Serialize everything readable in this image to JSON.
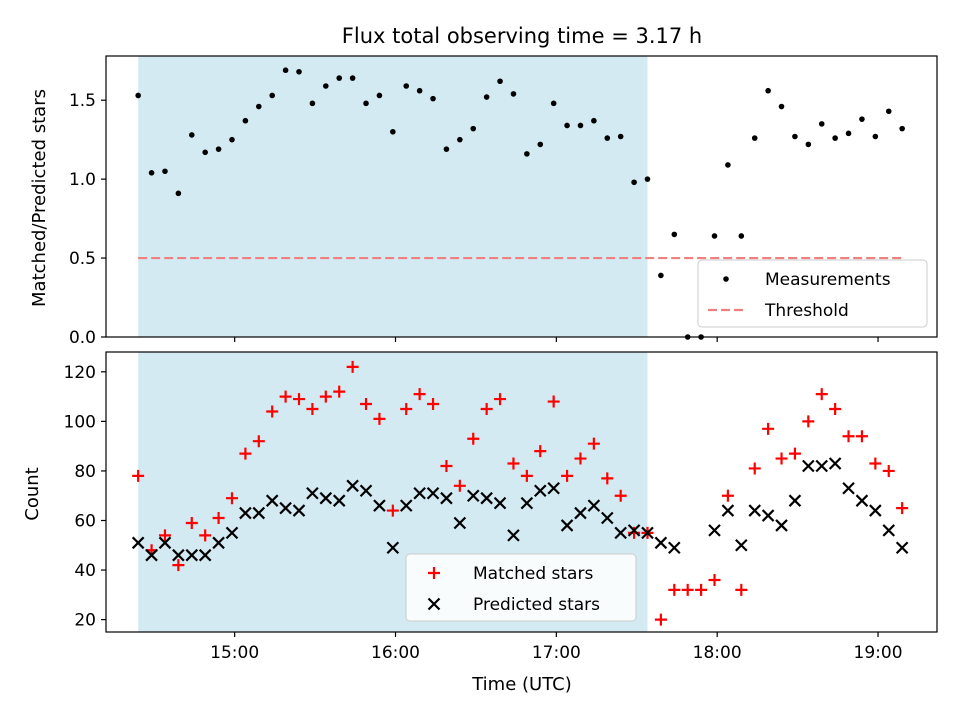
{
  "title": "Flux total observing time = 3.17 h",
  "chart_data": [
    {
      "type": "scatter",
      "ylabel": "Matched/Predicted stars",
      "ylim": [
        0,
        1.78
      ],
      "xlim": [
        "14:12",
        "19:22"
      ],
      "yticks": [
        0.0,
        0.5,
        1.0,
        1.5
      ],
      "ytick_labels": [
        "0.0",
        "0.5",
        "1.0",
        "1.5"
      ],
      "shaded_span": [
        "14:24",
        "17:34"
      ],
      "shade_color": "#add8e6",
      "legend_position": "lower-right",
      "threshold": {
        "name": "Threshold",
        "value": 0.5,
        "x_start": "14:24",
        "x_end": "19:10",
        "color": "#f08080",
        "style": "dashed"
      },
      "series": [
        {
          "name": "Measurements",
          "marker": "dot",
          "color": "#000000",
          "points": [
            [
              "14:24",
              1.53
            ],
            [
              "14:29",
              1.04
            ],
            [
              "14:34",
              1.05
            ],
            [
              "14:39",
              0.91
            ],
            [
              "14:44",
              1.28
            ],
            [
              "14:49",
              1.17
            ],
            [
              "14:54",
              1.19
            ],
            [
              "14:59",
              1.25
            ],
            [
              "15:04",
              1.37
            ],
            [
              "15:09",
              1.46
            ],
            [
              "15:14",
              1.53
            ],
            [
              "15:19",
              1.69
            ],
            [
              "15:24",
              1.68
            ],
            [
              "15:29",
              1.48
            ],
            [
              "15:34",
              1.59
            ],
            [
              "15:39",
              1.64
            ],
            [
              "15:44",
              1.64
            ],
            [
              "15:49",
              1.48
            ],
            [
              "15:54",
              1.53
            ],
            [
              "15:59",
              1.3
            ],
            [
              "16:04",
              1.59
            ],
            [
              "16:09",
              1.56
            ],
            [
              "16:14",
              1.51
            ],
            [
              "16:19",
              1.19
            ],
            [
              "16:24",
              1.25
            ],
            [
              "16:29",
              1.32
            ],
            [
              "16:34",
              1.52
            ],
            [
              "16:39",
              1.62
            ],
            [
              "16:44",
              1.54
            ],
            [
              "16:49",
              1.16
            ],
            [
              "16:54",
              1.22
            ],
            [
              "16:59",
              1.48
            ],
            [
              "17:04",
              1.34
            ],
            [
              "17:09",
              1.34
            ],
            [
              "17:14",
              1.37
            ],
            [
              "17:19",
              1.26
            ],
            [
              "17:24",
              1.27
            ],
            [
              "17:29",
              0.98
            ],
            [
              "17:34",
              1.0
            ],
            [
              "17:39",
              0.39
            ],
            [
              "17:44",
              0.65
            ],
            [
              "17:49",
              0.0
            ],
            [
              "17:54",
              0.0
            ],
            [
              "17:59",
              0.64
            ],
            [
              "18:04",
              1.09
            ],
            [
              "18:09",
              0.64
            ],
            [
              "18:14",
              1.26
            ],
            [
              "18:19",
              1.56
            ],
            [
              "18:24",
              1.46
            ],
            [
              "18:29",
              1.27
            ],
            [
              "18:34",
              1.22
            ],
            [
              "18:39",
              1.35
            ],
            [
              "18:44",
              1.26
            ],
            [
              "18:49",
              1.29
            ],
            [
              "18:54",
              1.38
            ],
            [
              "18:59",
              1.27
            ],
            [
              "19:04",
              1.43
            ],
            [
              "19:09",
              1.32
            ]
          ]
        }
      ],
      "legend": [
        "Measurements",
        "Threshold"
      ]
    },
    {
      "type": "scatter",
      "xlabel": "Time (UTC)",
      "ylabel": "Count",
      "ylim": [
        15,
        128
      ],
      "xlim": [
        "14:12",
        "19:22"
      ],
      "xticks": [
        "15:00",
        "16:00",
        "17:00",
        "18:00",
        "19:00"
      ],
      "yticks": [
        20,
        40,
        60,
        80,
        100,
        120
      ],
      "shaded_span": [
        "14:24",
        "17:34"
      ],
      "shade_color": "#add8e6",
      "legend_position": "lower-center",
      "series": [
        {
          "name": "Matched stars",
          "marker": "plus",
          "color": "#ff0000",
          "points": [
            [
              "14:24",
              78
            ],
            [
              "14:29",
              48
            ],
            [
              "14:34",
              54
            ],
            [
              "14:39",
              42
            ],
            [
              "14:44",
              59
            ],
            [
              "14:49",
              54
            ],
            [
              "14:54",
              61
            ],
            [
              "14:59",
              69
            ],
            [
              "15:04",
              87
            ],
            [
              "15:09",
              92
            ],
            [
              "15:14",
              104
            ],
            [
              "15:19",
              110
            ],
            [
              "15:24",
              109
            ],
            [
              "15:29",
              105
            ],
            [
              "15:34",
              110
            ],
            [
              "15:39",
              112
            ],
            [
              "15:44",
              122
            ],
            [
              "15:49",
              107
            ],
            [
              "15:54",
              101
            ],
            [
              "15:59",
              64
            ],
            [
              "16:04",
              105
            ],
            [
              "16:09",
              111
            ],
            [
              "16:14",
              107
            ],
            [
              "16:19",
              82
            ],
            [
              "16:24",
              74
            ],
            [
              "16:29",
              93
            ],
            [
              "16:34",
              105
            ],
            [
              "16:39",
              109
            ],
            [
              "16:44",
              83
            ],
            [
              "16:49",
              78
            ],
            [
              "16:54",
              88
            ],
            [
              "16:59",
              108
            ],
            [
              "17:04",
              78
            ],
            [
              "17:09",
              85
            ],
            [
              "17:14",
              91
            ],
            [
              "17:19",
              77
            ],
            [
              "17:24",
              70
            ],
            [
              "17:29",
              55
            ],
            [
              "17:34",
              55
            ],
            [
              "17:39",
              20
            ],
            [
              "17:44",
              32
            ],
            [
              "17:49",
              32
            ],
            [
              "17:54",
              32
            ],
            [
              "17:59",
              36
            ],
            [
              "18:04",
              70
            ],
            [
              "18:09",
              32
            ],
            [
              "18:14",
              81
            ],
            [
              "18:19",
              97
            ],
            [
              "18:24",
              85
            ],
            [
              "18:29",
              87
            ],
            [
              "18:34",
              100
            ],
            [
              "18:39",
              111
            ],
            [
              "18:44",
              105
            ],
            [
              "18:49",
              94
            ],
            [
              "18:54",
              94
            ],
            [
              "18:59",
              83
            ],
            [
              "19:04",
              80
            ],
            [
              "19:09",
              65
            ]
          ]
        },
        {
          "name": "Predicted stars",
          "marker": "x",
          "color": "#000000",
          "points": [
            [
              "14:24",
              51
            ],
            [
              "14:29",
              46
            ],
            [
              "14:34",
              51
            ],
            [
              "14:39",
              46
            ],
            [
              "14:44",
              46
            ],
            [
              "14:49",
              46
            ],
            [
              "14:54",
              51
            ],
            [
              "14:59",
              55
            ],
            [
              "15:04",
              63
            ],
            [
              "15:09",
              63
            ],
            [
              "15:14",
              68
            ],
            [
              "15:19",
              65
            ],
            [
              "15:24",
              64
            ],
            [
              "15:29",
              71
            ],
            [
              "15:34",
              69
            ],
            [
              "15:39",
              68
            ],
            [
              "15:44",
              74
            ],
            [
              "15:49",
              72
            ],
            [
              "15:54",
              66
            ],
            [
              "15:59",
              49
            ],
            [
              "16:04",
              66
            ],
            [
              "16:09",
              71
            ],
            [
              "16:14",
              71
            ],
            [
              "16:19",
              69
            ],
            [
              "16:24",
              59
            ],
            [
              "16:29",
              70
            ],
            [
              "16:34",
              69
            ],
            [
              "16:39",
              67
            ],
            [
              "16:44",
              54
            ],
            [
              "16:49",
              67
            ],
            [
              "16:54",
              72
            ],
            [
              "16:59",
              73
            ],
            [
              "17:04",
              58
            ],
            [
              "17:09",
              63
            ],
            [
              "17:14",
              66
            ],
            [
              "17:19",
              61
            ],
            [
              "17:24",
              55
            ],
            [
              "17:29",
              56
            ],
            [
              "17:34",
              55
            ],
            [
              "17:39",
              51
            ],
            [
              "17:44",
              49
            ],
            [
              "17:59",
              56
            ],
            [
              "18:04",
              64
            ],
            [
              "18:09",
              50
            ],
            [
              "18:14",
              64
            ],
            [
              "18:19",
              62
            ],
            [
              "18:24",
              58
            ],
            [
              "18:29",
              68
            ],
            [
              "18:34",
              82
            ],
            [
              "18:39",
              82
            ],
            [
              "18:44",
              83
            ],
            [
              "18:49",
              73
            ],
            [
              "18:54",
              68
            ],
            [
              "18:59",
              64
            ],
            [
              "19:04",
              56
            ],
            [
              "19:09",
              49
            ]
          ]
        }
      ],
      "legend": [
        "Matched stars",
        "Predicted stars"
      ]
    }
  ]
}
